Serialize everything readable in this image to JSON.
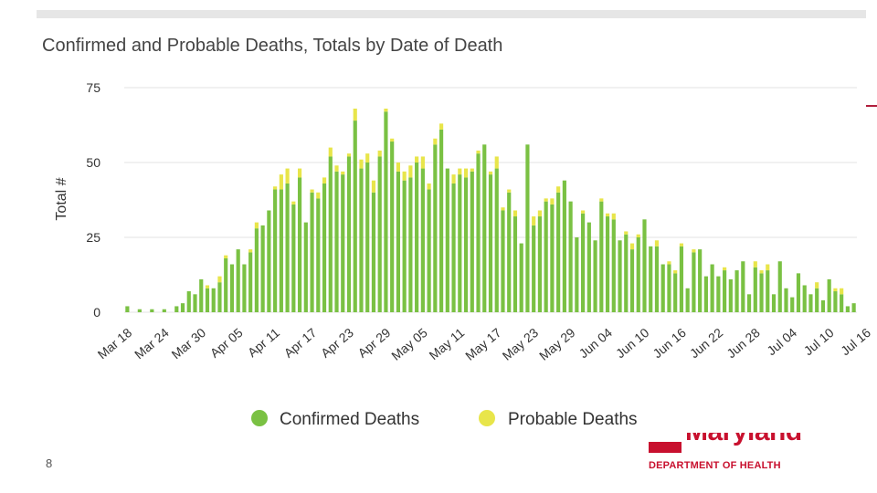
{
  "page": {
    "number": "8"
  },
  "logo": {
    "wordmark": "Maryland",
    "department": "DEPARTMENT OF HEALTH"
  },
  "colors": {
    "confirmed": "#7ac143",
    "probable": "#e8e54a",
    "grid": "#e3e3e3",
    "brand": "#c8102e"
  },
  "chart_data": {
    "type": "bar",
    "stacked": true,
    "title": "Confirmed and Probable Deaths, Totals by Date of Death",
    "ylabel": "Total #",
    "xlabel": "",
    "ylim": [
      0,
      75
    ],
    "yticks": [
      0,
      25,
      50,
      75
    ],
    "start_date": "Mar 18",
    "x_tick_labels": [
      "Mar 18",
      "Mar 24",
      "Mar 30",
      "Apr 05",
      "Apr 11",
      "Apr 17",
      "Apr 23",
      "Apr 29",
      "May 05",
      "May 11",
      "May 17",
      "May 23",
      "May 29",
      "Jun 04",
      "Jun 10",
      "Jun 16",
      "Jun 22",
      "Jun 28",
      "Jul 04",
      "Jul 10",
      "Jul 16"
    ],
    "x_tick_step_days": 6,
    "series": [
      {
        "name": "Confirmed Deaths",
        "values": [
          2,
          0,
          1,
          0,
          1,
          0,
          1,
          0,
          2,
          3,
          7,
          6,
          11,
          8,
          8,
          10,
          18,
          16,
          21,
          16,
          20,
          28,
          29,
          34,
          41,
          41,
          43,
          36,
          45,
          30,
          40,
          38,
          43,
          52,
          47,
          46,
          52,
          64,
          48,
          50,
          40,
          52,
          67,
          57,
          47,
          44,
          45,
          50,
          48,
          41,
          56,
          61,
          48,
          43,
          46,
          45,
          47,
          53,
          56,
          46,
          48,
          34,
          40,
          32,
          23,
          56,
          29,
          32,
          37,
          36,
          40,
          44,
          37,
          25,
          33,
          30,
          24,
          37,
          32,
          31,
          24,
          26,
          21,
          25,
          31,
          22,
          22,
          16,
          16,
          13,
          22,
          8,
          20,
          21,
          12,
          16,
          12,
          14,
          11,
          14,
          17,
          6,
          15,
          13,
          14,
          6,
          17,
          8,
          5,
          13,
          9,
          6,
          8,
          4,
          11,
          7,
          6,
          2,
          3
        ],
        "color": "#7ac143"
      },
      {
        "name": "Probable Deaths",
        "values": [
          0,
          0,
          0,
          0,
          0,
          0,
          0,
          0,
          0,
          0,
          0,
          0,
          0,
          1,
          0,
          2,
          1,
          0,
          0,
          0,
          1,
          2,
          0,
          0,
          1,
          5,
          5,
          1,
          3,
          0,
          1,
          2,
          2,
          3,
          2,
          1,
          1,
          4,
          3,
          3,
          4,
          2,
          1,
          1,
          3,
          3,
          4,
          2,
          4,
          2,
          2,
          2,
          0,
          3,
          2,
          3,
          1,
          1,
          0,
          1,
          4,
          1,
          1,
          2,
          0,
          0,
          3,
          2,
          1,
          2,
          2,
          0,
          0,
          0,
          1,
          0,
          0,
          1,
          1,
          2,
          0,
          1,
          2,
          1,
          0,
          0,
          2,
          0,
          1,
          1,
          1,
          0,
          1,
          0,
          0,
          0,
          0,
          1,
          0,
          0,
          0,
          0,
          2,
          1,
          2,
          0,
          0,
          0,
          0,
          0,
          0,
          0,
          2,
          0,
          0,
          1,
          2,
          0,
          0
        ],
        "color": "#e8e54a"
      }
    ],
    "legend": {
      "position": "bottom-center",
      "items": [
        "Confirmed Deaths",
        "Probable Deaths"
      ]
    },
    "grid": true
  }
}
